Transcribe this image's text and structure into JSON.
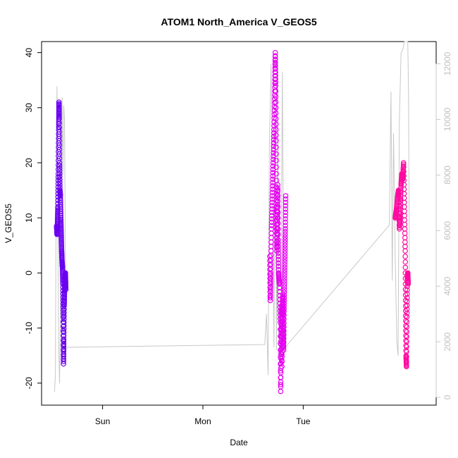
{
  "chart_data": {
    "type": "scatter",
    "title": "ATOM1 North_America V_GEOS5",
    "xlabel": "Date",
    "ylabel": "V_GEOS5",
    "x_ticks": [
      "Sun",
      "Mon",
      "Tue"
    ],
    "y_ticks": [
      "-20",
      "-10",
      "0",
      "10",
      "20",
      "30",
      "40"
    ],
    "y2_ticks": [
      "0",
      "2000",
      "4000",
      "6000",
      "8000",
      "10000",
      "12000"
    ],
    "ylim": [
      -24,
      42
    ],
    "y2lim": [
      -280,
      12800
    ],
    "xlim_hours": [
      -14.6,
      79.8
    ],
    "grid": false,
    "legend": "none",
    "colors": {
      "segment1": "#6a00f0",
      "segment2": "#e600f0",
      "segment3": "#ff0aa0",
      "altitude": "#c8c8c8"
    },
    "segments": [
      {
        "color_key": "segment1",
        "points_hours_value": [
          [
            -11.0,
            8.5
          ],
          [
            -10.9,
            7.0
          ],
          [
            -10.8,
            9.0
          ],
          [
            -10.7,
            12.0
          ],
          [
            -10.6,
            18.0
          ],
          [
            -10.5,
            26.0
          ],
          [
            -10.45,
            31.0
          ],
          [
            -10.4,
            28.0
          ],
          [
            -10.3,
            20.0
          ],
          [
            -10.2,
            15.0
          ],
          [
            -10.1,
            14.0
          ],
          [
            -10.0,
            10.0
          ],
          [
            -9.9,
            7.0
          ],
          [
            -9.8,
            4.0
          ],
          [
            -9.7,
            2.0
          ],
          [
            -9.6,
            1.0
          ],
          [
            -9.5,
            -2.0
          ],
          [
            -9.4,
            -8.0
          ],
          [
            -9.35,
            -16.5
          ],
          [
            -9.3,
            -12.0
          ],
          [
            -9.2,
            -6.0
          ],
          [
            -9.1,
            -3.0
          ],
          [
            -9.0,
            -1.0
          ],
          [
            -8.9,
            0.0
          ],
          [
            -8.8,
            -3.0
          ]
        ]
      },
      {
        "color_key": "segment2",
        "points_hours_value": [
          [
            40.0,
            3.0
          ],
          [
            40.1,
            -5.0
          ],
          [
            40.2,
            0.0
          ],
          [
            40.4,
            8.0
          ],
          [
            40.6,
            14.0
          ],
          [
            40.8,
            20.0
          ],
          [
            41.0,
            26.0
          ],
          [
            41.2,
            33.0
          ],
          [
            41.3,
            40.0
          ],
          [
            41.4,
            34.0
          ],
          [
            41.5,
            24.0
          ],
          [
            41.6,
            12.0
          ],
          [
            41.7,
            4.0
          ],
          [
            41.8,
            10.0
          ],
          [
            41.9,
            16.0
          ],
          [
            42.0,
            6.0
          ],
          [
            42.1,
            0.0
          ],
          [
            42.3,
            -2.0
          ],
          [
            42.5,
            -9.0
          ],
          [
            42.6,
            -21.5
          ],
          [
            42.7,
            -13.0
          ],
          [
            42.8,
            -6.0
          ],
          [
            42.9,
            -17.0
          ],
          [
            43.0,
            -8.0
          ],
          [
            43.1,
            -4.0
          ],
          [
            43.2,
            -10.0
          ],
          [
            43.3,
            -14.0
          ],
          [
            43.4,
            -7.0
          ],
          [
            43.5,
            -2.0
          ],
          [
            43.6,
            3.0
          ],
          [
            43.7,
            8.0
          ],
          [
            43.8,
            14.0
          ]
        ]
      },
      {
        "color_key": "segment3",
        "points_hours_value": [
          [
            70.0,
            10.0
          ],
          [
            70.3,
            11.5
          ],
          [
            70.6,
            14.0
          ],
          [
            70.8,
            15.0
          ],
          [
            71.0,
            8.0
          ],
          [
            71.2,
            11.0
          ],
          [
            71.4,
            16.0
          ],
          [
            71.6,
            18.0
          ],
          [
            71.8,
            17.0
          ],
          [
            72.0,
            20.0
          ],
          [
            72.2,
            12.0
          ],
          [
            72.4,
            4.0
          ],
          [
            72.5,
            -6.0
          ],
          [
            72.6,
            -15.0
          ],
          [
            72.7,
            -17.0
          ],
          [
            72.8,
            -8.0
          ],
          [
            72.9,
            -1.0
          ],
          [
            73.0,
            0.0
          ],
          [
            73.1,
            -2.0
          ]
        ]
      }
    ],
    "altitude_line_hours_value": [
      [
        -11.5,
        200
      ],
      [
        -11.3,
        800
      ],
      [
        -11.1,
        8000
      ],
      [
        -10.9,
        11200
      ],
      [
        -10.7,
        6000
      ],
      [
        -10.5,
        2000
      ],
      [
        -10.3,
        500
      ],
      [
        -10.0,
        4000
      ],
      [
        -9.7,
        10800
      ],
      [
        -9.5,
        8000
      ],
      [
        -9.3,
        10500
      ],
      [
        -9.1,
        10000
      ],
      [
        -8.8,
        1800
      ],
      [
        38.8,
        1900
      ],
      [
        39.2,
        3000
      ],
      [
        39.6,
        800
      ],
      [
        39.9,
        9000
      ],
      [
        40.3,
        12000
      ],
      [
        40.7,
        8000
      ],
      [
        41.0,
        1800
      ],
      [
        41.3,
        10800
      ],
      [
        41.6,
        1700
      ],
      [
        41.9,
        11500
      ],
      [
        42.2,
        3000
      ],
      [
        42.6,
        1400
      ],
      [
        43.0,
        11700
      ],
      [
        43.4,
        2300
      ],
      [
        43.7,
        1800
      ],
      [
        68.6,
        6200
      ],
      [
        69.0,
        11000
      ],
      [
        69.3,
        4200
      ],
      [
        69.6,
        9500
      ],
      [
        70.0,
        5000
      ],
      [
        70.4,
        2000
      ],
      [
        70.7,
        1500
      ],
      [
        71.0,
        10000
      ],
      [
        71.4,
        12400
      ],
      [
        71.8,
        12500
      ],
      [
        72.2,
        12800
      ],
      [
        72.6,
        12800
      ],
      [
        73.0,
        12800
      ],
      [
        73.2,
        11000
      ],
      [
        73.4,
        4000
      ]
    ]
  }
}
